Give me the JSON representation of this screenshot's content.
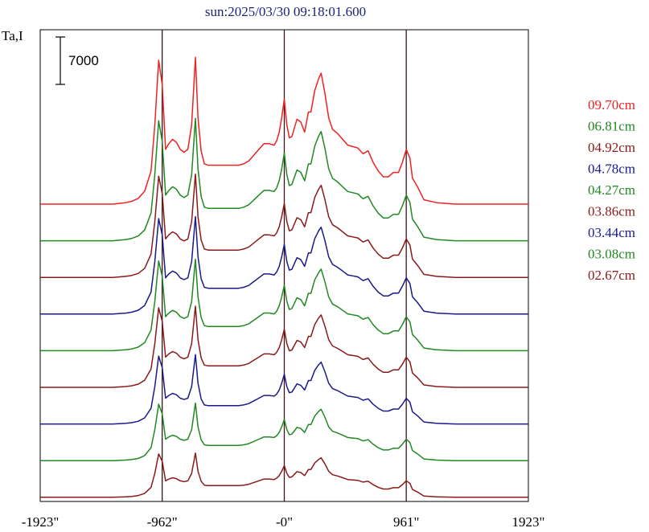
{
  "title": "sun:2025/03/30 09:18:01.600",
  "title_color": "#1a237e",
  "chart_data": {
    "type": "line",
    "title": "sun:2025/03/30 09:18:01.600",
    "ylabel": "Ta,I",
    "scale_bar": {
      "label": "7000",
      "value": 7000
    },
    "x_ticks": [
      "-1923\"",
      "-962\"",
      "-0\"",
      "961\"",
      "1923\""
    ],
    "x_tick_values": [
      -1923,
      -962,
      0,
      961,
      1923
    ],
    "xlim": [
      -1923,
      1923
    ],
    "vertical_markers": [
      -962,
      0,
      961
    ],
    "grid": false,
    "legend_position": "right",
    "x": [
      -1923,
      -1850,
      -1750,
      -1650,
      -1550,
      -1450,
      -1350,
      -1250,
      -1200,
      -1150,
      -1100,
      -1050,
      -1020,
      -990,
      -962,
      -935,
      -910,
      -880,
      -850,
      -820,
      -790,
      -760,
      -730,
      -700,
      -680,
      -655,
      -630,
      -600,
      -560,
      -520,
      -480,
      -440,
      -400,
      -360,
      -320,
      -280,
      -240,
      -200,
      -160,
      -120,
      -80,
      -60,
      -40,
      -20,
      0,
      20,
      40,
      60,
      80,
      100,
      130,
      160,
      190,
      210,
      240,
      270,
      290,
      320,
      350,
      380,
      420,
      460,
      500,
      540,
      580,
      620,
      660,
      700,
      740,
      780,
      820,
      860,
      900,
      930,
      961,
      990,
      1010,
      1050,
      1100,
      1200,
      1350,
      1500,
      1650,
      1800,
      1923
    ],
    "shape_profiles": {
      "full": [
        0,
        0,
        0,
        0,
        0,
        0,
        0,
        0.01,
        0.02,
        0.04,
        0.09,
        0.23,
        0.55,
        1.0,
        0.83,
        0.38,
        0.42,
        0.45,
        0.43,
        0.38,
        0.36,
        0.38,
        0.55,
        1.02,
        0.6,
        0.37,
        0.28,
        0.27,
        0.27,
        0.27,
        0.27,
        0.27,
        0.27,
        0.27,
        0.28,
        0.3,
        0.34,
        0.38,
        0.42,
        0.42,
        0.41,
        0.44,
        0.5,
        0.6,
        0.73,
        0.55,
        0.46,
        0.47,
        0.53,
        0.59,
        0.57,
        0.5,
        0.64,
        0.64,
        0.79,
        0.87,
        0.91,
        0.77,
        0.6,
        0.52,
        0.49,
        0.45,
        0.41,
        0.4,
        0.39,
        0.35,
        0.37,
        0.29,
        0.23,
        0.19,
        0.19,
        0.22,
        0.22,
        0.29,
        0.38,
        0.32,
        0.18,
        0.12,
        0.03,
        0.01,
        0,
        0,
        0,
        0,
        0
      ]
    },
    "series": [
      {
        "name": "09.70cm",
        "color": "#ee2222",
        "scale": 0.995,
        "profile": "full"
      },
      {
        "name": "06.81cm",
        "color": "#228822",
        "scale": 0.83,
        "profile": "full"
      },
      {
        "name": "04.92cm",
        "color": "#8a1a1a",
        "scale": 0.7,
        "profile": "full"
      },
      {
        "name": "04.78cm",
        "color": "#1a1a8a",
        "scale": 0.66,
        "profile": "full"
      },
      {
        "name": "04.27cm",
        "color": "#228822",
        "scale": 0.62,
        "profile": "full"
      },
      {
        "name": "03.86cm",
        "color": "#8a1a1a",
        "scale": 0.55,
        "profile": "full"
      },
      {
        "name": "03.44cm",
        "color": "#1a1a8a",
        "scale": 0.47,
        "profile": "full"
      },
      {
        "name": "03.08cm",
        "color": "#228822",
        "scale": 0.39,
        "profile": "full"
      },
      {
        "name": "02.67cm",
        "color": "#8a1a1a",
        "scale": 0.3,
        "profile": "full"
      }
    ]
  }
}
